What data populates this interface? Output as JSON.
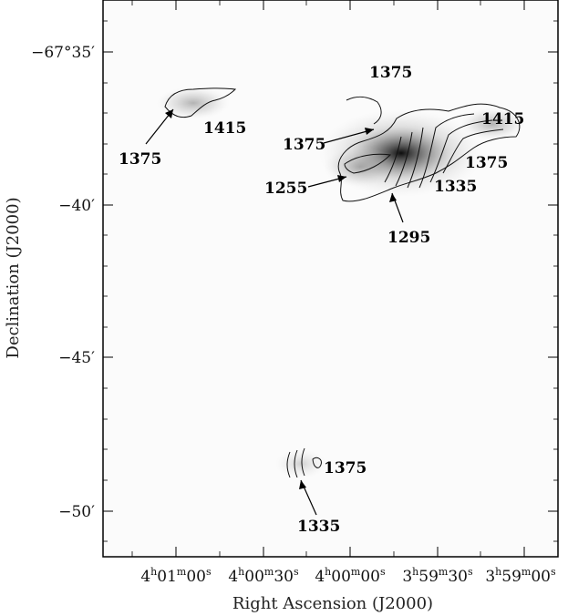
{
  "chart_data": {
    "type": "image",
    "xlabel": "Right Ascension (J2000)",
    "ylabel": "Declination (J2000)",
    "x_ticks": [
      {
        "h": "4",
        "m": "01",
        "s": "00"
      },
      {
        "h": "4",
        "m": "00",
        "s": "30"
      },
      {
        "h": "4",
        "m": "00",
        "s": "00"
      },
      {
        "h": "3",
        "m": "59",
        "s": "30"
      },
      {
        "h": "3",
        "m": "59",
        "s": "00"
      }
    ],
    "y_ticks": [
      "−67°35′",
      "−40′",
      "−45′",
      "−50′"
    ],
    "grayscale_image": "HI column density (grayscale) with velocity contours",
    "contour_labels": [
      {
        "id": "nw-1375",
        "text": "1375"
      },
      {
        "id": "nw-1415",
        "text": "1415"
      },
      {
        "id": "top-1375",
        "text": "1375"
      },
      {
        "id": "mid-1375",
        "text": "1375"
      },
      {
        "id": "right-1415",
        "text": "1415"
      },
      {
        "id": "right-1375",
        "text": "1375"
      },
      {
        "id": "left-1255",
        "text": "1255"
      },
      {
        "id": "right-1335",
        "text": "1335"
      },
      {
        "id": "bottom-1295",
        "text": "1295"
      },
      {
        "id": "south-1375",
        "text": "1375"
      },
      {
        "id": "south-1335",
        "text": "1335"
      }
    ]
  }
}
